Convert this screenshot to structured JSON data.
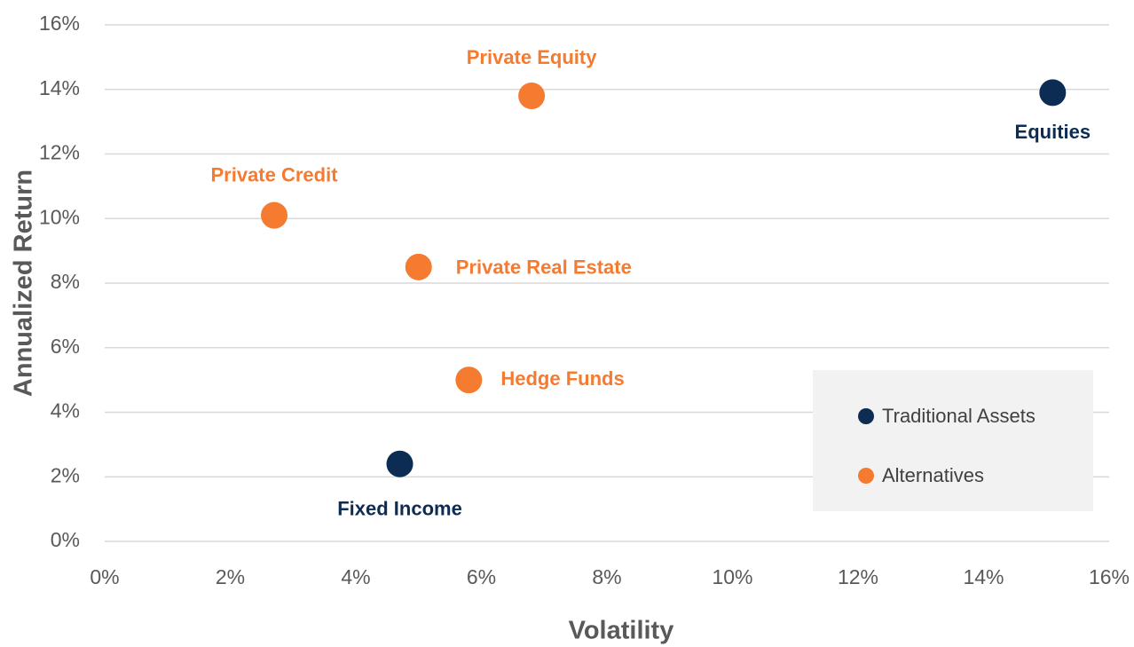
{
  "chart_data": {
    "type": "scatter",
    "xlabel": "Volatility",
    "ylabel": "Annualized Return",
    "xlim": [
      0,
      16
    ],
    "ylim": [
      0,
      16
    ],
    "xticks": [
      {
        "value": 0,
        "label": "0%"
      },
      {
        "value": 2,
        "label": "2%"
      },
      {
        "value": 4,
        "label": "4%"
      },
      {
        "value": 6,
        "label": "6%"
      },
      {
        "value": 8,
        "label": "8%"
      },
      {
        "value": 10,
        "label": "10%"
      },
      {
        "value": 12,
        "label": "12%"
      },
      {
        "value": 14,
        "label": "14%"
      },
      {
        "value": 16,
        "label": "16%"
      }
    ],
    "yticks": [
      {
        "value": 0,
        "label": "0%"
      },
      {
        "value": 2,
        "label": "2%"
      },
      {
        "value": 4,
        "label": "4%"
      },
      {
        "value": 6,
        "label": "6%"
      },
      {
        "value": 8,
        "label": "8%"
      },
      {
        "value": 10,
        "label": "10%"
      },
      {
        "value": 12,
        "label": "12%"
      },
      {
        "value": 14,
        "label": "14%"
      },
      {
        "value": 16,
        "label": "16%"
      }
    ],
    "grid": true,
    "legend": "lower right",
    "series": [
      {
        "name": "Traditional Assets",
        "color": "#0d2c54",
        "labels": [
          "Fixed Income",
          "Equities"
        ],
        "x": [
          4.7,
          15.1
        ],
        "values": [
          2.4,
          13.9
        ]
      },
      {
        "name": "Alternatives",
        "color": "#f47b30",
        "labels": [
          "Private Equity",
          "Private Credit",
          "Private Real Estate",
          "Hedge Funds"
        ],
        "x": [
          6.8,
          2.7,
          5.0,
          5.8
        ],
        "values": [
          13.8,
          10.1,
          8.5,
          5.0
        ]
      }
    ]
  }
}
